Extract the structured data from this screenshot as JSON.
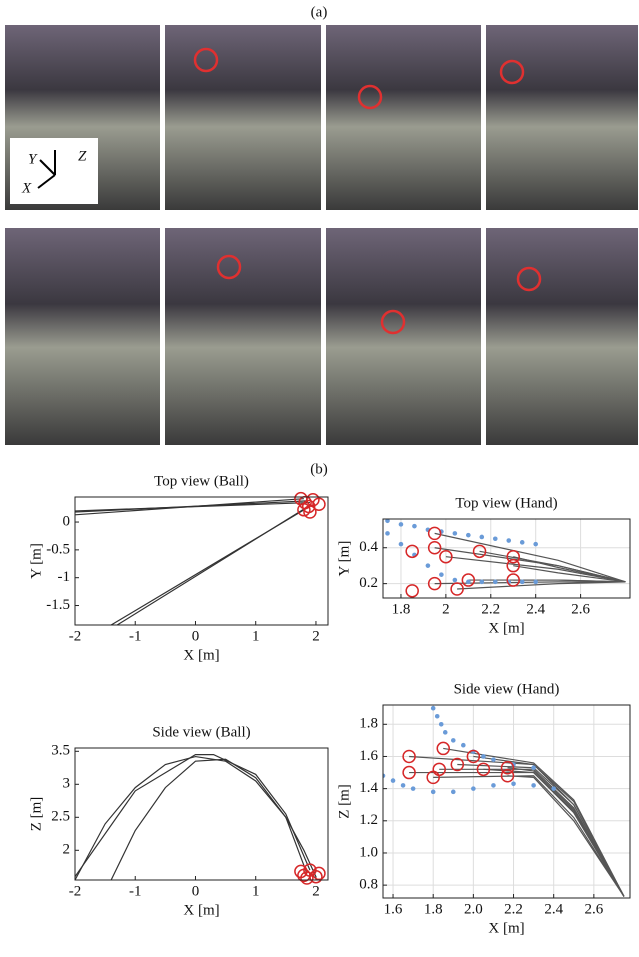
{
  "figure": {
    "label_a": "(a)",
    "label_b": "(b)",
    "photo_axes": [
      "Y",
      "Z",
      "X"
    ]
  },
  "chart_data": [
    {
      "type": "line",
      "title": "Top view (Ball)",
      "xlabel": "X [m]",
      "ylabel": "Y [m]",
      "xlim": [
        -2,
        2.2
      ],
      "ylim": [
        -1.85,
        0.45
      ],
      "xticks": [
        -2,
        -1,
        0,
        1,
        2
      ],
      "yticks": [
        -1.5,
        -1,
        -0.5,
        0
      ],
      "grid": false,
      "series": [
        {
          "color": "#333333",
          "x": [
            -1.4,
            1.85
          ],
          "y": [
            -1.85,
            0.25
          ]
        },
        {
          "color": "#333333",
          "x": [
            -1.3,
            1.9
          ],
          "y": [
            -1.85,
            0.3
          ]
        },
        {
          "color": "#333333",
          "x": [
            -2,
            1.8
          ],
          "y": [
            0.13,
            0.42
          ]
        },
        {
          "color": "#333333",
          "x": [
            -2,
            1.85
          ],
          "y": [
            0.18,
            0.38
          ]
        },
        {
          "color": "#333333",
          "x": [
            -2,
            1.9
          ],
          "y": [
            0.2,
            0.35
          ]
        },
        {
          "color": "#d62728",
          "marker": "circle-open",
          "x": [
            1.75,
            1.82,
            1.88,
            1.95,
            2.05,
            1.8,
            1.9
          ],
          "y": [
            0.42,
            0.35,
            0.28,
            0.4,
            0.32,
            0.22,
            0.18
          ]
        }
      ]
    },
    {
      "type": "line",
      "title": "Top view (Hand)",
      "xlabel": "X [m]",
      "ylabel": "Y [m]",
      "xlim": [
        1.72,
        2.82
      ],
      "ylim": [
        0.12,
        0.56
      ],
      "xticks": [
        1.8,
        2,
        2.2,
        2.4,
        2.6
      ],
      "yticks": [
        0.2,
        0.4
      ],
      "grid": true,
      "series": [
        {
          "color": "#555555",
          "x": [
            1.95,
            2.5,
            2.8
          ],
          "y": [
            0.48,
            0.33,
            0.21
          ]
        },
        {
          "color": "#555555",
          "x": [
            1.95,
            2.5,
            2.8
          ],
          "y": [
            0.4,
            0.3,
            0.21
          ]
        },
        {
          "color": "#555555",
          "x": [
            2.0,
            2.5,
            2.8
          ],
          "y": [
            0.35,
            0.28,
            0.21
          ]
        },
        {
          "color": "#555555",
          "x": [
            2.15,
            2.5,
            2.8
          ],
          "y": [
            0.38,
            0.3,
            0.21
          ]
        },
        {
          "color": "#555555",
          "x": [
            2.3,
            2.5,
            2.8
          ],
          "y": [
            0.35,
            0.29,
            0.21
          ]
        },
        {
          "color": "#555555",
          "x": [
            2.3,
            2.5,
            2.8
          ],
          "y": [
            0.3,
            0.26,
            0.21
          ]
        },
        {
          "color": "#555555",
          "x": [
            1.95,
            2.5,
            2.8
          ],
          "y": [
            0.2,
            0.21,
            0.21
          ]
        },
        {
          "color": "#555555",
          "x": [
            2.05,
            2.5,
            2.8
          ],
          "y": [
            0.17,
            0.2,
            0.21
          ]
        },
        {
          "color": "#555555",
          "x": [
            2.1,
            2.5,
            2.8
          ],
          "y": [
            0.22,
            0.22,
            0.21
          ]
        },
        {
          "color": "#555555",
          "x": [
            2.3,
            2.5,
            2.8
          ],
          "y": [
            0.22,
            0.22,
            0.21
          ]
        },
        {
          "color": "#6a9bd8",
          "marker": "dot",
          "x": [
            1.74,
            1.8,
            1.86,
            1.92,
            1.98,
            2.04,
            2.1,
            2.16,
            2.22,
            2.28,
            2.34,
            2.4
          ],
          "y": [
            0.55,
            0.53,
            0.52,
            0.5,
            0.49,
            0.48,
            0.47,
            0.46,
            0.45,
            0.44,
            0.43,
            0.42
          ]
        },
        {
          "color": "#6a9bd8",
          "marker": "dot",
          "x": [
            1.74,
            1.8,
            1.86,
            1.92,
            1.98,
            2.04,
            2.1,
            2.16,
            2.22,
            2.28,
            2.34,
            2.4
          ],
          "y": [
            0.48,
            0.42,
            0.36,
            0.3,
            0.25,
            0.22,
            0.21,
            0.21,
            0.21,
            0.21,
            0.21,
            0.21
          ]
        },
        {
          "color": "#d62728",
          "marker": "circle-open",
          "x": [
            1.95,
            1.95,
            2.0,
            2.15,
            2.3,
            2.3,
            1.95,
            2.05,
            2.1,
            2.3,
            1.85,
            1.85
          ],
          "y": [
            0.48,
            0.4,
            0.35,
            0.38,
            0.35,
            0.3,
            0.2,
            0.17,
            0.22,
            0.22,
            0.38,
            0.16
          ]
        }
      ]
    },
    {
      "type": "line",
      "title": "Side view (Ball)",
      "xlabel": "X [m]",
      "ylabel": "Z [m]",
      "xlim": [
        -2,
        2.2
      ],
      "ylim": [
        1.55,
        3.55
      ],
      "xticks": [
        -2,
        -1,
        0,
        1,
        2
      ],
      "yticks": [
        2,
        2.5,
        3,
        3.5
      ],
      "grid": false,
      "series": [
        {
          "color": "#333333",
          "x": [
            -2,
            -1.5,
            -1,
            -0.5,
            0,
            0.5,
            1,
            1.5,
            1.8,
            2.0
          ],
          "y": [
            1.55,
            2.4,
            2.95,
            3.3,
            3.42,
            3.35,
            3.05,
            2.5,
            2.0,
            1.6
          ]
        },
        {
          "color": "#333333",
          "x": [
            -1.4,
            -1,
            -0.5,
            0,
            0.5,
            1,
            1.5,
            1.85
          ],
          "y": [
            1.55,
            2.3,
            2.95,
            3.35,
            3.38,
            3.1,
            2.5,
            1.65
          ]
        },
        {
          "color": "#333333",
          "x": [
            -2,
            -1,
            0,
            0.3,
            1,
            1.5,
            1.9
          ],
          "y": [
            1.6,
            2.9,
            3.45,
            3.45,
            3.15,
            2.55,
            1.7
          ]
        },
        {
          "color": "#d62728",
          "marker": "circle-open",
          "x": [
            1.8,
            1.9,
            2.0,
            1.75,
            2.05,
            1.85
          ],
          "y": [
            1.62,
            1.7,
            1.6,
            1.68,
            1.65,
            1.58
          ]
        }
      ]
    },
    {
      "type": "line",
      "title": "Side view (Hand)",
      "xlabel": "X [m]",
      "ylabel": "Z [m]",
      "xlim": [
        1.55,
        2.78
      ],
      "ylim": [
        0.72,
        1.92
      ],
      "xticks": [
        1.6,
        1.8,
        {
          "value": 2,
          "label": "2.0"
        },
        2.2,
        2.4,
        2.6
      ],
      "yticks": [
        0.8,
        {
          "value": 1,
          "label": "1.0"
        },
        1.2,
        1.4,
        1.6,
        1.8
      ],
      "grid": true,
      "series": [
        {
          "color": "#555555",
          "x": [
            1.68,
            2.3,
            2.5,
            2.75
          ],
          "y": [
            1.6,
            1.55,
            1.3,
            0.73
          ]
        },
        {
          "color": "#555555",
          "x": [
            1.68,
            2.3,
            2.5,
            2.75
          ],
          "y": [
            1.5,
            1.5,
            1.25,
            0.73
          ]
        },
        {
          "color": "#555555",
          "x": [
            1.8,
            2.3,
            2.5,
            2.75
          ],
          "y": [
            1.47,
            1.48,
            1.22,
            0.73
          ]
        },
        {
          "color": "#555555",
          "x": [
            1.83,
            2.3,
            2.5,
            2.75
          ],
          "y": [
            1.52,
            1.52,
            1.28,
            0.73
          ]
        },
        {
          "color": "#555555",
          "x": [
            1.85,
            2.3,
            2.5,
            2.75
          ],
          "y": [
            1.65,
            1.56,
            1.33,
            0.73
          ]
        },
        {
          "color": "#555555",
          "x": [
            1.92,
            2.3,
            2.5,
            2.75
          ],
          "y": [
            1.55,
            1.53,
            1.3,
            0.73
          ]
        },
        {
          "color": "#555555",
          "x": [
            2.0,
            2.3,
            2.5,
            2.75
          ],
          "y": [
            1.6,
            1.55,
            1.32,
            0.73
          ]
        },
        {
          "color": "#555555",
          "x": [
            2.05,
            2.3,
            2.5,
            2.75
          ],
          "y": [
            1.52,
            1.5,
            1.26,
            0.73
          ]
        },
        {
          "color": "#555555",
          "x": [
            2.17,
            2.3,
            2.5,
            2.75
          ],
          "y": [
            1.53,
            1.51,
            1.27,
            0.73
          ]
        },
        {
          "color": "#555555",
          "x": [
            2.17,
            2.3,
            2.5,
            2.75
          ],
          "y": [
            1.48,
            1.47,
            1.2,
            0.73
          ]
        },
        {
          "color": "#6a9bd8",
          "marker": "dot",
          "x": [
            1.8,
            1.82,
            1.84,
            1.86,
            1.9,
            1.95,
            2.0,
            2.05,
            2.1,
            2.2,
            2.3
          ],
          "y": [
            1.9,
            1.85,
            1.8,
            1.75,
            1.7,
            1.67,
            1.63,
            1.6,
            1.58,
            1.55,
            1.53
          ]
        },
        {
          "color": "#6a9bd8",
          "marker": "dot",
          "x": [
            1.55,
            1.6,
            1.65,
            1.7,
            1.8,
            1.9,
            2.0,
            2.1,
            2.2,
            2.3,
            2.4
          ],
          "y": [
            1.48,
            1.45,
            1.42,
            1.4,
            1.38,
            1.38,
            1.4,
            1.42,
            1.43,
            1.42,
            1.4
          ]
        },
        {
          "color": "#d62728",
          "marker": "circle-open",
          "x": [
            1.68,
            1.68,
            1.8,
            1.83,
            1.85,
            1.92,
            2.0,
            2.05,
            2.17,
            2.17
          ],
          "y": [
            1.6,
            1.5,
            1.47,
            1.52,
            1.65,
            1.55,
            1.6,
            1.52,
            1.53,
            1.48
          ]
        }
      ]
    }
  ]
}
